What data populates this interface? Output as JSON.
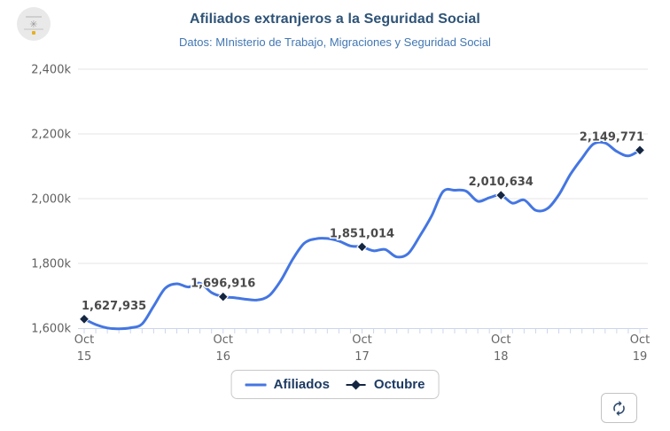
{
  "header": {
    "title": "Afiliados extranjeros a la Seguridad Social",
    "subtitle": "Datos: MInisterio de Trabajo, Migraciones y Seguridad Social",
    "logo_icon": "circular-badge-logo"
  },
  "legend": {
    "items": [
      {
        "label": "Afiliados",
        "swatch": "line",
        "color": "#4476e2"
      },
      {
        "label": "Octubre",
        "swatch": "diamond",
        "color": "#152642"
      }
    ]
  },
  "controls": {
    "refresh_button_icon": "refresh-icon"
  },
  "colors": {
    "line": "#4476e2",
    "marker": "#152642",
    "grid": "#e6e6e6",
    "axis": "#ccd6eb",
    "axis_text": "#666666",
    "data_label": "#4a4a4a",
    "title": "#2e5377",
    "subtitle": "#4277b3",
    "legend_text": "#1d3a63"
  },
  "chart_data": {
    "type": "line",
    "title": "Afiliados extranjeros a la Seguridad Social",
    "subtitle": "Datos: MInisterio de Trabajo, Migraciones y Seguridad Social",
    "xlabel": "",
    "ylabel": "",
    "ylim": [
      1600000,
      2400000
    ],
    "grid": "horizontal",
    "legend_position": "bottom",
    "x_range": {
      "start": "2015-10",
      "end": "2019-10",
      "step": "month"
    },
    "y_ticks": [
      {
        "value": 1600000,
        "label": "1,600k"
      },
      {
        "value": 1800000,
        "label": "1,800k"
      },
      {
        "value": 2000000,
        "label": "2,000k"
      },
      {
        "value": 2200000,
        "label": "2,200k"
      },
      {
        "value": 2400000,
        "label": "2,400k"
      }
    ],
    "x_ticks": [
      {
        "index": 0,
        "month": "Oct",
        "year": "15"
      },
      {
        "index": 12,
        "month": "Oct",
        "year": "16"
      },
      {
        "index": 24,
        "month": "Oct",
        "year": "17"
      },
      {
        "index": 36,
        "month": "Oct",
        "year": "18"
      },
      {
        "index": 48,
        "month": "Oct",
        "year": "19"
      }
    ],
    "series": [
      {
        "name": "Afiliados",
        "type": "spline",
        "color": "#4476e2",
        "values": [
          1627935,
          1611000,
          1600500,
          1598000,
          1601000,
          1613000,
          1668000,
          1723000,
          1737000,
          1727000,
          1739000,
          1710000,
          1696916,
          1694000,
          1689000,
          1687000,
          1701000,
          1748000,
          1812000,
          1862000,
          1876000,
          1877000,
          1869000,
          1854000,
          1851014,
          1839000,
          1843000,
          1820000,
          1831000,
          1885000,
          1946000,
          2022000,
          2026000,
          2023000,
          1992000,
          2003000,
          2010634,
          1986000,
          1996000,
          1964000,
          1969000,
          2012000,
          2075000,
          2125000,
          2169000,
          2172000,
          2146000,
          2132000,
          2149771
        ]
      },
      {
        "name": "Octubre",
        "type": "scatter",
        "marker": "diamond",
        "color": "#152642",
        "points": [
          {
            "index": 0,
            "value": 1627935,
            "label": "1,627,935"
          },
          {
            "index": 12,
            "value": 1696916,
            "label": "1,696,916"
          },
          {
            "index": 24,
            "value": 1851014,
            "label": "1,851,014"
          },
          {
            "index": 36,
            "value": 2010634,
            "label": "2,010,634"
          },
          {
            "index": 48,
            "value": 2149771,
            "label": "2,149,771"
          }
        ]
      }
    ]
  }
}
